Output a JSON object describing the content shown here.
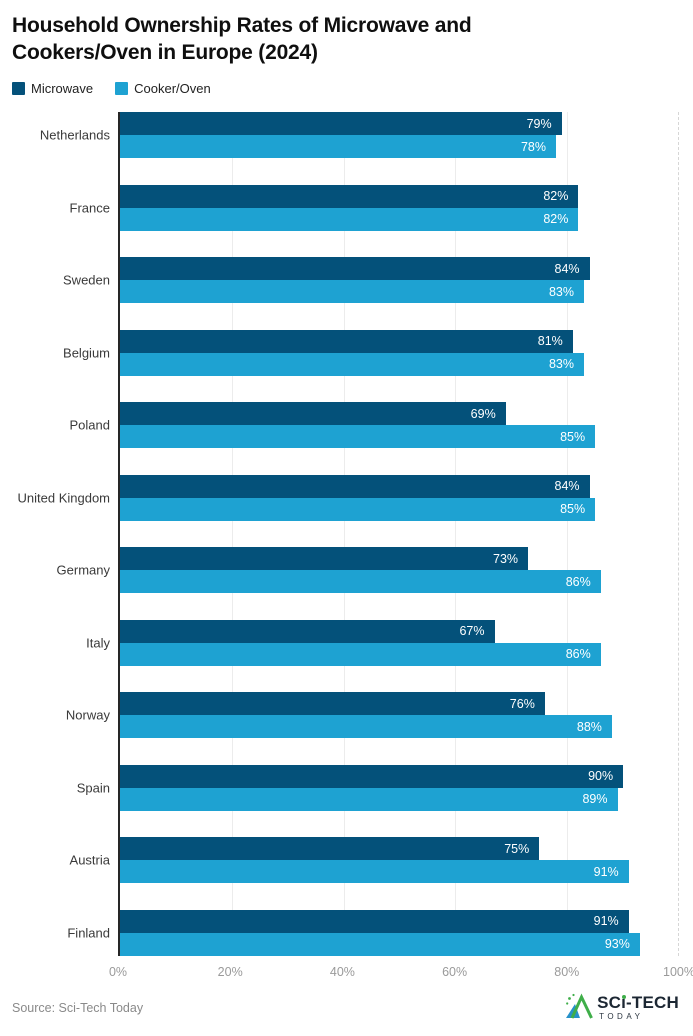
{
  "title": "Household Ownership Rates of Microwave and Cookers/Oven in Europe (2024)",
  "legend": [
    {
      "label": "Microwave",
      "color": "#04517a"
    },
    {
      "label": "Cooker/Oven",
      "color": "#1ea2d2"
    }
  ],
  "chart_data": {
    "type": "bar",
    "orientation": "horizontal",
    "title": "Household Ownership Rates of Microwave and Cookers/Oven in Europe (2024)",
    "categories": [
      "Netherlands",
      "France",
      "Sweden",
      "Belgium",
      "Poland",
      "United Kingdom",
      "Germany",
      "Italy",
      "Norway",
      "Spain",
      "Austria",
      "Finland"
    ],
    "series": [
      {
        "name": "Microwave",
        "color": "#04517a",
        "values": [
          79,
          82,
          84,
          81,
          69,
          84,
          73,
          67,
          76,
          90,
          75,
          91
        ]
      },
      {
        "name": "Cooker/Oven",
        "color": "#1ea2d2",
        "values": [
          78,
          82,
          83,
          83,
          85,
          85,
          86,
          86,
          88,
          89,
          91,
          93
        ]
      }
    ],
    "xlim": [
      0,
      100
    ],
    "x_ticks": [
      "0%",
      "20%",
      "40%",
      "60%",
      "80%",
      "100%"
    ],
    "grid_solid": [
      20,
      40,
      60,
      80
    ],
    "grid_dashed": [
      100
    ],
    "value_suffix": "%",
    "legend_position": "top-left",
    "grid": "vertical-light"
  },
  "footer": {
    "source": "Source: Sci-Tech Today",
    "logo": {
      "text_left": "SC",
      "text_i": "ı",
      "text_right": "-TECH",
      "text_sub": "TODAY",
      "color_navy": "#1c2733",
      "color_green": "#3fae49",
      "color_blue": "#2791c9"
    }
  }
}
